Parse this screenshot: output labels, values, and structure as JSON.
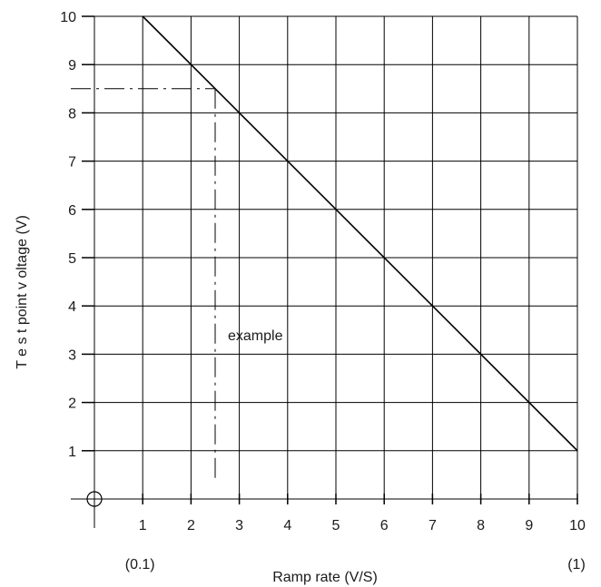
{
  "chart_data": {
    "type": "line",
    "xlabel": "Ramp rate (V/S)",
    "ylabel": "T e s t point   v oltage (V)",
    "xlim": [
      0,
      10
    ],
    "ylim": [
      0,
      10
    ],
    "x_ticks": [
      "1",
      "2",
      "3",
      "4",
      "5",
      "6",
      "7",
      "8",
      "9",
      "10"
    ],
    "y_ticks": [
      "1",
      "2",
      "3",
      "4",
      "5",
      "6",
      "7",
      "8",
      "9",
      "10"
    ],
    "x_range_labels": {
      "min": "(0.1)",
      "max": "(1)"
    },
    "grid": true,
    "series": [
      {
        "x": [
          1,
          10
        ],
        "y": [
          10,
          1
        ]
      }
    ],
    "annotations": [
      {
        "text": "example",
        "x": 2.5,
        "y": 8.5
      }
    ]
  }
}
